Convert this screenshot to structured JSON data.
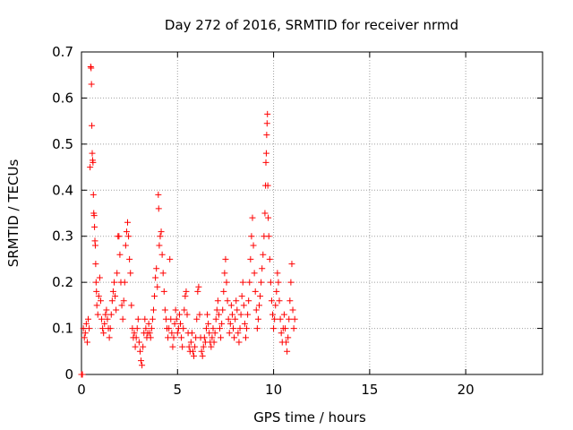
{
  "chart_data": {
    "type": "scatter",
    "title": "Day 272 of 2016, SRMTID for receiver nrmd",
    "xlabel": "GPS time / hours",
    "ylabel": "SRMTID / TECUs",
    "xlim": [
      0,
      24
    ],
    "ylim": [
      0,
      0.7
    ],
    "x_ticks": [
      0,
      5,
      10,
      15,
      20
    ],
    "y_ticks": [
      0,
      0.1,
      0.2,
      0.3,
      0.4,
      0.5,
      0.6,
      0.7
    ],
    "x_tick_labels": [
      "0",
      "5",
      "10",
      "15",
      "20"
    ],
    "y_tick_labels": [
      "0",
      "0.1",
      "0.2",
      "0.3",
      "0.4",
      "0.5",
      "0.6",
      "0.7"
    ],
    "grid": true,
    "marker": "+",
    "series_color": "#ff0000",
    "points": [
      [
        0.0,
        0.0
      ],
      [
        0.05,
        0.0
      ],
      [
        0.1,
        0.1
      ],
      [
        0.15,
        0.08
      ],
      [
        0.2,
        0.09
      ],
      [
        0.25,
        0.11
      ],
      [
        0.3,
        0.07
      ],
      [
        0.35,
        0.12
      ],
      [
        0.4,
        0.1
      ],
      [
        0.45,
        0.45
      ],
      [
        0.48,
        0.668
      ],
      [
        0.5,
        0.665
      ],
      [
        0.52,
        0.63
      ],
      [
        0.54,
        0.54
      ],
      [
        0.56,
        0.48
      ],
      [
        0.58,
        0.465
      ],
      [
        0.6,
        0.46
      ],
      [
        0.62,
        0.39
      ],
      [
        0.64,
        0.35
      ],
      [
        0.66,
        0.345
      ],
      [
        0.68,
        0.32
      ],
      [
        0.7,
        0.29
      ],
      [
        0.72,
        0.28
      ],
      [
        0.74,
        0.24
      ],
      [
        0.76,
        0.2
      ],
      [
        0.78,
        0.18
      ],
      [
        0.8,
        0.15
      ],
      [
        0.85,
        0.13
      ],
      [
        0.9,
        0.17
      ],
      [
        0.95,
        0.21
      ],
      [
        1.0,
        0.16
      ],
      [
        1.05,
        0.12
      ],
      [
        1.1,
        0.1
      ],
      [
        1.15,
        0.09
      ],
      [
        1.2,
        0.11
      ],
      [
        1.25,
        0.13
      ],
      [
        1.3,
        0.14
      ],
      [
        1.35,
        0.12
      ],
      [
        1.4,
        0.1
      ],
      [
        1.45,
        0.08
      ],
      [
        1.5,
        0.1
      ],
      [
        1.55,
        0.13
      ],
      [
        1.6,
        0.16
      ],
      [
        1.65,
        0.18
      ],
      [
        1.7,
        0.2
      ],
      [
        1.75,
        0.17
      ],
      [
        1.8,
        0.14
      ],
      [
        1.85,
        0.22
      ],
      [
        1.9,
        0.3
      ],
      [
        1.95,
        0.3
      ],
      [
        2.0,
        0.26
      ],
      [
        2.05,
        0.2
      ],
      [
        2.1,
        0.15
      ],
      [
        2.15,
        0.12
      ],
      [
        2.2,
        0.16
      ],
      [
        2.25,
        0.2
      ],
      [
        2.3,
        0.28
      ],
      [
        2.35,
        0.31
      ],
      [
        2.4,
        0.33
      ],
      [
        2.45,
        0.3
      ],
      [
        2.5,
        0.25
      ],
      [
        2.55,
        0.22
      ],
      [
        2.6,
        0.15
      ],
      [
        2.65,
        0.1
      ],
      [
        2.7,
        0.08
      ],
      [
        2.75,
        0.09
      ],
      [
        2.8,
        0.06
      ],
      [
        2.85,
        0.08
      ],
      [
        2.9,
        0.1
      ],
      [
        2.95,
        0.12
      ],
      [
        3.0,
        0.07
      ],
      [
        3.05,
        0.05
      ],
      [
        3.1,
        0.03
      ],
      [
        3.15,
        0.02
      ],
      [
        3.2,
        0.06
      ],
      [
        3.25,
        0.09
      ],
      [
        3.3,
        0.12
      ],
      [
        3.35,
        0.1
      ],
      [
        3.4,
        0.08
      ],
      [
        3.45,
        0.09
      ],
      [
        3.5,
        0.11
      ],
      [
        3.55,
        0.09
      ],
      [
        3.6,
        0.08
      ],
      [
        3.65,
        0.1
      ],
      [
        3.7,
        0.12
      ],
      [
        3.75,
        0.14
      ],
      [
        3.8,
        0.17
      ],
      [
        3.85,
        0.21
      ],
      [
        3.9,
        0.23
      ],
      [
        3.95,
        0.19
      ],
      [
        4.0,
        0.39
      ],
      [
        4.02,
        0.36
      ],
      [
        4.05,
        0.28
      ],
      [
        4.1,
        0.3
      ],
      [
        4.15,
        0.31
      ],
      [
        4.2,
        0.26
      ],
      [
        4.25,
        0.22
      ],
      [
        4.3,
        0.18
      ],
      [
        4.35,
        0.14
      ],
      [
        4.4,
        0.12
      ],
      [
        4.45,
        0.1
      ],
      [
        4.5,
        0.08
      ],
      [
        4.55,
        0.1
      ],
      [
        4.6,
        0.25
      ],
      [
        4.65,
        0.12
      ],
      [
        4.7,
        0.09
      ],
      [
        4.75,
        0.06
      ],
      [
        4.8,
        0.08
      ],
      [
        4.85,
        0.11
      ],
      [
        4.9,
        0.14
      ],
      [
        4.95,
        0.12
      ],
      [
        5.0,
        0.09
      ],
      [
        5.05,
        0.1
      ],
      [
        5.1,
        0.13
      ],
      [
        5.15,
        0.11
      ],
      [
        5.2,
        0.08
      ],
      [
        5.25,
        0.06
      ],
      [
        5.3,
        0.1
      ],
      [
        5.35,
        0.14
      ],
      [
        5.4,
        0.17
      ],
      [
        5.45,
        0.18
      ],
      [
        5.5,
        0.13
      ],
      [
        5.55,
        0.09
      ],
      [
        5.6,
        0.06
      ],
      [
        5.65,
        0.05
      ],
      [
        5.7,
        0.07
      ],
      [
        5.75,
        0.09
      ],
      [
        5.8,
        0.05
      ],
      [
        5.85,
        0.04
      ],
      [
        5.9,
        0.06
      ],
      [
        5.95,
        0.08
      ],
      [
        6.0,
        0.12
      ],
      [
        6.05,
        0.18
      ],
      [
        6.1,
        0.19
      ],
      [
        6.15,
        0.13
      ],
      [
        6.2,
        0.08
      ],
      [
        6.25,
        0.05
      ],
      [
        6.3,
        0.04
      ],
      [
        6.35,
        0.06
      ],
      [
        6.4,
        0.08
      ],
      [
        6.45,
        0.07
      ],
      [
        6.5,
        0.1
      ],
      [
        6.55,
        0.13
      ],
      [
        6.6,
        0.11
      ],
      [
        6.65,
        0.09
      ],
      [
        6.7,
        0.07
      ],
      [
        6.75,
        0.06
      ],
      [
        6.8,
        0.08
      ],
      [
        6.85,
        0.1
      ],
      [
        6.9,
        0.07
      ],
      [
        6.95,
        0.09
      ],
      [
        7.0,
        0.12
      ],
      [
        7.05,
        0.14
      ],
      [
        7.1,
        0.16
      ],
      [
        7.15,
        0.13
      ],
      [
        7.2,
        0.1
      ],
      [
        7.25,
        0.08
      ],
      [
        7.3,
        0.11
      ],
      [
        7.35,
        0.14
      ],
      [
        7.4,
        0.18
      ],
      [
        7.45,
        0.22
      ],
      [
        7.5,
        0.25
      ],
      [
        7.55,
        0.2
      ],
      [
        7.6,
        0.16
      ],
      [
        7.65,
        0.12
      ],
      [
        7.7,
        0.09
      ],
      [
        7.75,
        0.11
      ],
      [
        7.8,
        0.15
      ],
      [
        7.85,
        0.13
      ],
      [
        7.9,
        0.1
      ],
      [
        7.95,
        0.08
      ],
      [
        8.0,
        0.12
      ],
      [
        8.05,
        0.16
      ],
      [
        8.1,
        0.14
      ],
      [
        8.15,
        0.09
      ],
      [
        8.2,
        0.07
      ],
      [
        8.25,
        0.1
      ],
      [
        8.3,
        0.13
      ],
      [
        8.35,
        0.17
      ],
      [
        8.4,
        0.2
      ],
      [
        8.45,
        0.15
      ],
      [
        8.5,
        0.11
      ],
      [
        8.55,
        0.08
      ],
      [
        8.6,
        0.1
      ],
      [
        8.65,
        0.13
      ],
      [
        8.7,
        0.16
      ],
      [
        8.75,
        0.2
      ],
      [
        8.8,
        0.25
      ],
      [
        8.85,
        0.3
      ],
      [
        8.9,
        0.34
      ],
      [
        8.95,
        0.28
      ],
      [
        9.0,
        0.22
      ],
      [
        9.05,
        0.18
      ],
      [
        9.1,
        0.14
      ],
      [
        9.15,
        0.1
      ],
      [
        9.2,
        0.12
      ],
      [
        9.25,
        0.15
      ],
      [
        9.3,
        0.17
      ],
      [
        9.35,
        0.2
      ],
      [
        9.4,
        0.23
      ],
      [
        9.45,
        0.26
      ],
      [
        9.5,
        0.3
      ],
      [
        9.55,
        0.35
      ],
      [
        9.58,
        0.41
      ],
      [
        9.6,
        0.46
      ],
      [
        9.62,
        0.48
      ],
      [
        9.64,
        0.52
      ],
      [
        9.66,
        0.545
      ],
      [
        9.68,
        0.565
      ],
      [
        9.7,
        0.41
      ],
      [
        9.72,
        0.34
      ],
      [
        9.75,
        0.3
      ],
      [
        9.8,
        0.25
      ],
      [
        9.85,
        0.2
      ],
      [
        9.9,
        0.16
      ],
      [
        9.95,
        0.13
      ],
      [
        10.0,
        0.1
      ],
      [
        10.05,
        0.12
      ],
      [
        10.1,
        0.15
      ],
      [
        10.15,
        0.18
      ],
      [
        10.2,
        0.22
      ],
      [
        10.25,
        0.2
      ],
      [
        10.3,
        0.16
      ],
      [
        10.35,
        0.12
      ],
      [
        10.4,
        0.09
      ],
      [
        10.45,
        0.07
      ],
      [
        10.5,
        0.1
      ],
      [
        10.55,
        0.13
      ],
      [
        10.6,
        0.1
      ],
      [
        10.65,
        0.07
      ],
      [
        10.7,
        0.05
      ],
      [
        10.75,
        0.08
      ],
      [
        10.8,
        0.12
      ],
      [
        10.85,
        0.16
      ],
      [
        10.9,
        0.2
      ],
      [
        10.95,
        0.24
      ],
      [
        11.0,
        0.14
      ],
      [
        11.05,
        0.1
      ],
      [
        11.1,
        0.12
      ]
    ]
  }
}
